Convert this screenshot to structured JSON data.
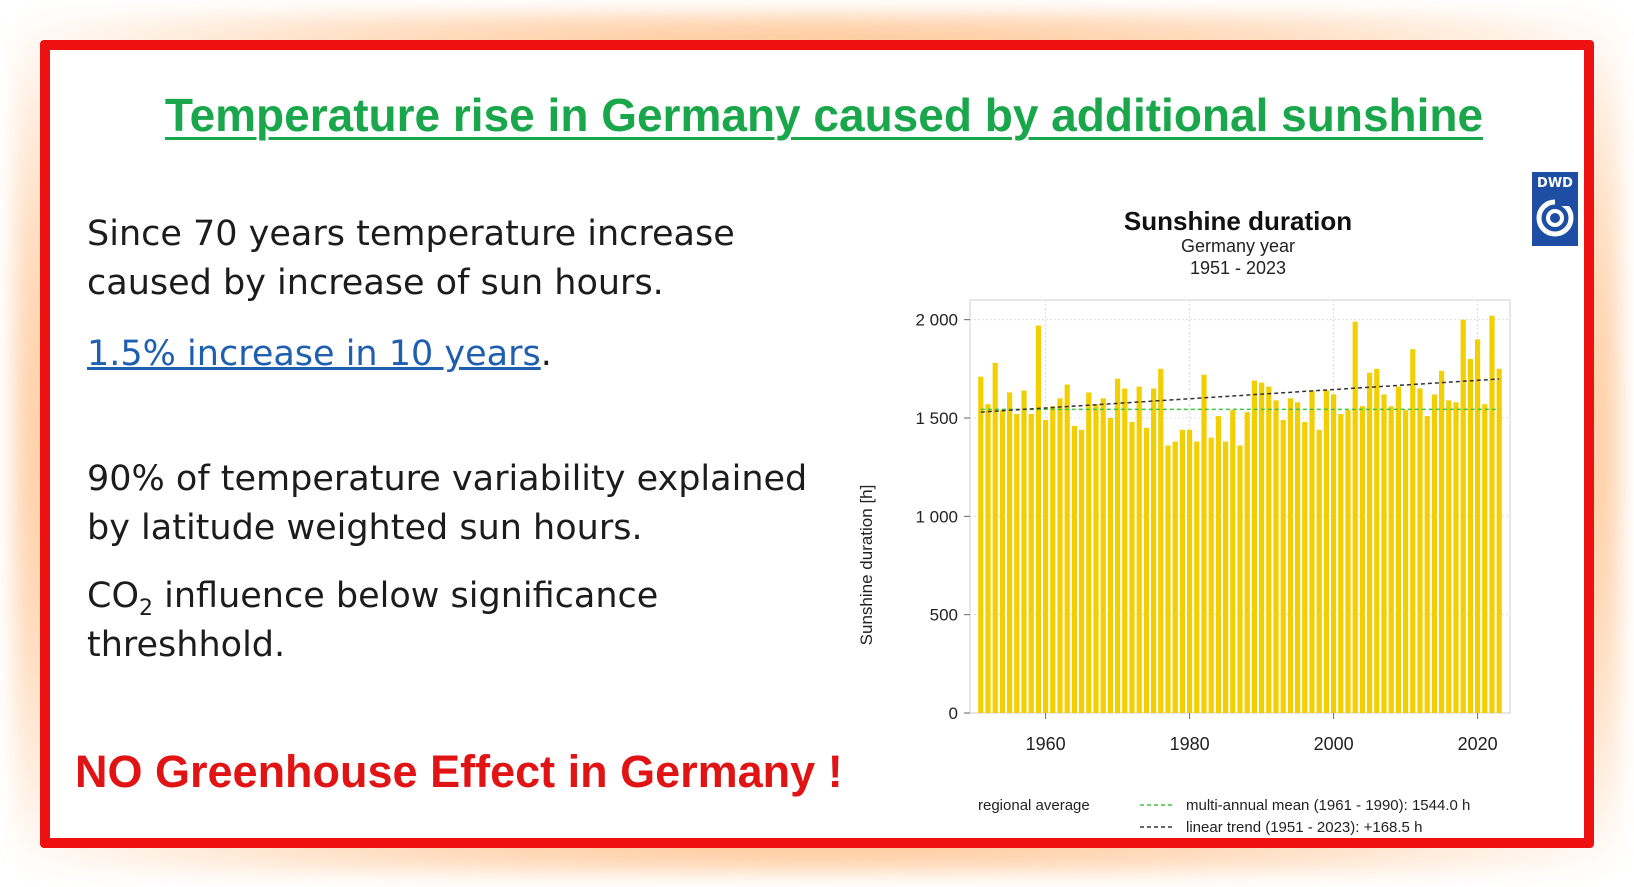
{
  "slide": {
    "title": "Temperature rise in Germany caused by additional sunshine",
    "p1": "Since 70 years temperature increase caused by increase of sun hours.",
    "p2_link": "1.5% increase in 10 years",
    "p2_tail": ".",
    "p3": "90% of temperature variability explained by latitude weighted sun hours.",
    "p4_a": "CO",
    "p4_sub": "2",
    "p4_b": " influence below significance threshhold.",
    "conclusion": "NO Greenhouse Effect in Germany !"
  },
  "logo": {
    "label": "DWD"
  },
  "colors": {
    "title": "#1aa64b",
    "frame": "#ee1111",
    "bars": "#f2cf00",
    "mean": "#44c444",
    "trend": "#333333"
  },
  "chart_data": {
    "type": "bar",
    "title": "Sunshine duration",
    "subtitle": "Germany year",
    "period": "1951 - 2023",
    "xlabel": "",
    "ylabel": "Sunshine duration [h]",
    "ylim": [
      0,
      2100
    ],
    "xlim": [
      1949.5,
      2024.5
    ],
    "yticks": [
      0,
      500,
      1000,
      1500,
      2000
    ],
    "ytick_labels": [
      "0",
      "500",
      "1 000",
      "1 500",
      "2 000"
    ],
    "xticks": [
      1960,
      1980,
      2000,
      2020
    ],
    "xtick_labels": [
      "1960",
      "1980",
      "2000",
      "2020"
    ],
    "x": [
      1951,
      1952,
      1953,
      1954,
      1955,
      1956,
      1957,
      1958,
      1959,
      1960,
      1961,
      1962,
      1963,
      1964,
      1965,
      1966,
      1967,
      1968,
      1969,
      1970,
      1971,
      1972,
      1973,
      1974,
      1975,
      1976,
      1977,
      1978,
      1979,
      1980,
      1981,
      1982,
      1983,
      1984,
      1985,
      1986,
      1987,
      1988,
      1989,
      1990,
      1991,
      1992,
      1993,
      1994,
      1995,
      1996,
      1997,
      1998,
      1999,
      2000,
      2001,
      2002,
      2003,
      2004,
      2005,
      2006,
      2007,
      2008,
      2009,
      2010,
      2011,
      2012,
      2013,
      2014,
      2015,
      2016,
      2017,
      2018,
      2019,
      2020,
      2021,
      2022,
      2023
    ],
    "values": [
      1710,
      1570,
      1780,
      1540,
      1630,
      1520,
      1640,
      1520,
      1970,
      1490,
      1560,
      1600,
      1670,
      1460,
      1440,
      1630,
      1570,
      1600,
      1500,
      1700,
      1650,
      1480,
      1660,
      1450,
      1650,
      1750,
      1360,
      1380,
      1440,
      1440,
      1380,
      1720,
      1400,
      1510,
      1380,
      1540,
      1360,
      1530,
      1690,
      1680,
      1660,
      1590,
      1490,
      1600,
      1580,
      1480,
      1640,
      1440,
      1640,
      1620,
      1520,
      1540,
      1990,
      1560,
      1730,
      1750,
      1620,
      1560,
      1660,
      1540,
      1850,
      1650,
      1510,
      1620,
      1740,
      1590,
      1580,
      2000,
      1800,
      1900,
      1570,
      2020,
      1750
    ],
    "series_name": "regional average",
    "mean": {
      "label": "multi-annual mean (1961 - 1990): 1544.0 h",
      "value": 1544.0
    },
    "trend": {
      "label": "linear trend (1951 - 2023): +168.5 h",
      "start": 1530,
      "end": 1698.5
    },
    "legend_series_label": "regional average"
  }
}
